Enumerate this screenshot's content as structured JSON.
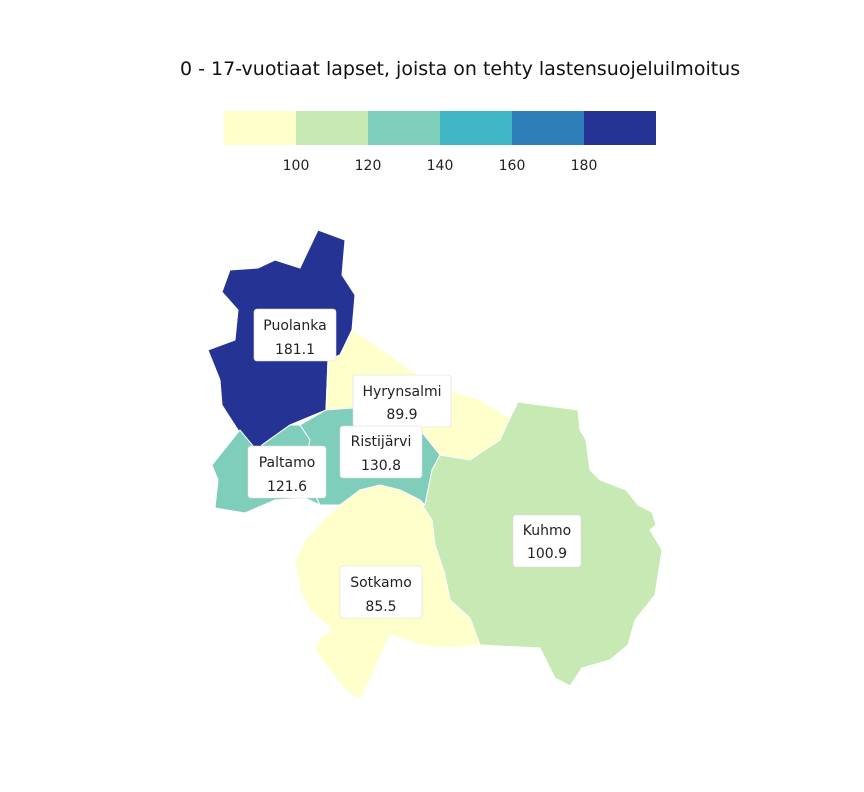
{
  "title": "0 - 17-vuotiaat lapset, joista on tehty lastensuojeluilmoitus",
  "legend": {
    "breaks": [
      "100",
      "120",
      "140",
      "160",
      "180"
    ],
    "colors": [
      "#ffffcc",
      "#c7e9b4",
      "#7fcdbb",
      "#41b6c4",
      "#2c7fb8",
      "#253494"
    ]
  },
  "regions": [
    {
      "name": "Puolanka",
      "value": "181.1",
      "color": "#253494"
    },
    {
      "name": "Hyrynsalmi",
      "value": "89.9",
      "color": "#ffffcc"
    },
    {
      "name": "Ristijärvi",
      "value": "130.8",
      "color": "#7fcdbb"
    },
    {
      "name": "Paltamo",
      "value": "121.6",
      "color": "#7fcdbb"
    },
    {
      "name": "Kuhmo",
      "value": "100.9",
      "color": "#c7e9b4"
    },
    {
      "name": "Sotkamo",
      "value": "85.5",
      "color": "#ffffcc"
    }
  ]
}
